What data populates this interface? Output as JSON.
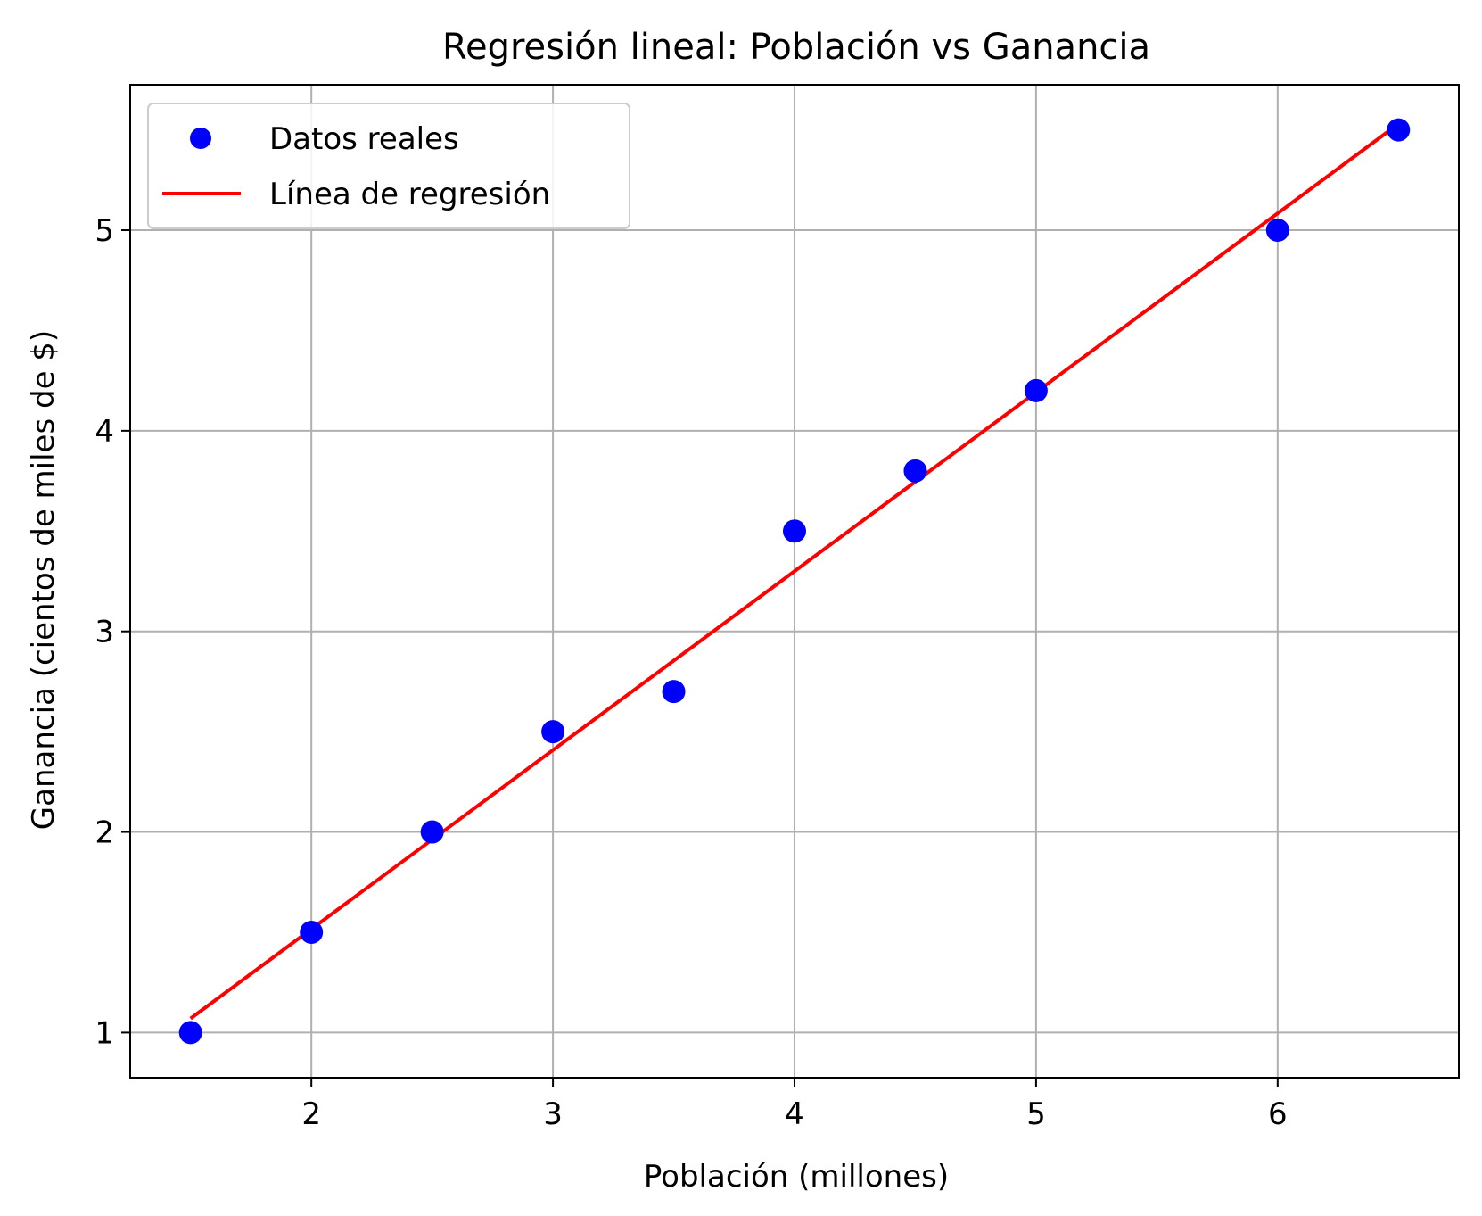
{
  "chart_data": {
    "type": "scatter",
    "title": "Regresión lineal: Población vs Ganancia",
    "xlabel": "Población (millones)",
    "ylabel": "Ganancia (cientos de miles de $)",
    "xlim": [
      1.25,
      6.75
    ],
    "ylim": [
      0.775,
      5.725
    ],
    "xticks": [
      2,
      3,
      4,
      5,
      6
    ],
    "yticks": [
      1,
      2,
      3,
      4,
      5
    ],
    "grid": true,
    "legend_position": "top-left",
    "series": [
      {
        "name": "Datos reales",
        "kind": "scatter",
        "color": "#0000ff",
        "x": [
          1.5,
          2.0,
          2.5,
          3.0,
          3.5,
          4.0,
          4.5,
          5.0,
          6.0,
          6.5
        ],
        "y": [
          1.0,
          1.5,
          2.0,
          2.5,
          2.7,
          3.5,
          3.8,
          4.2,
          5.0,
          5.5
        ]
      },
      {
        "name": "Línea de regresión",
        "kind": "line",
        "color": "#ff0000",
        "x": [
          1.5,
          6.5
        ],
        "y": [
          1.07,
          5.53
        ]
      }
    ]
  }
}
